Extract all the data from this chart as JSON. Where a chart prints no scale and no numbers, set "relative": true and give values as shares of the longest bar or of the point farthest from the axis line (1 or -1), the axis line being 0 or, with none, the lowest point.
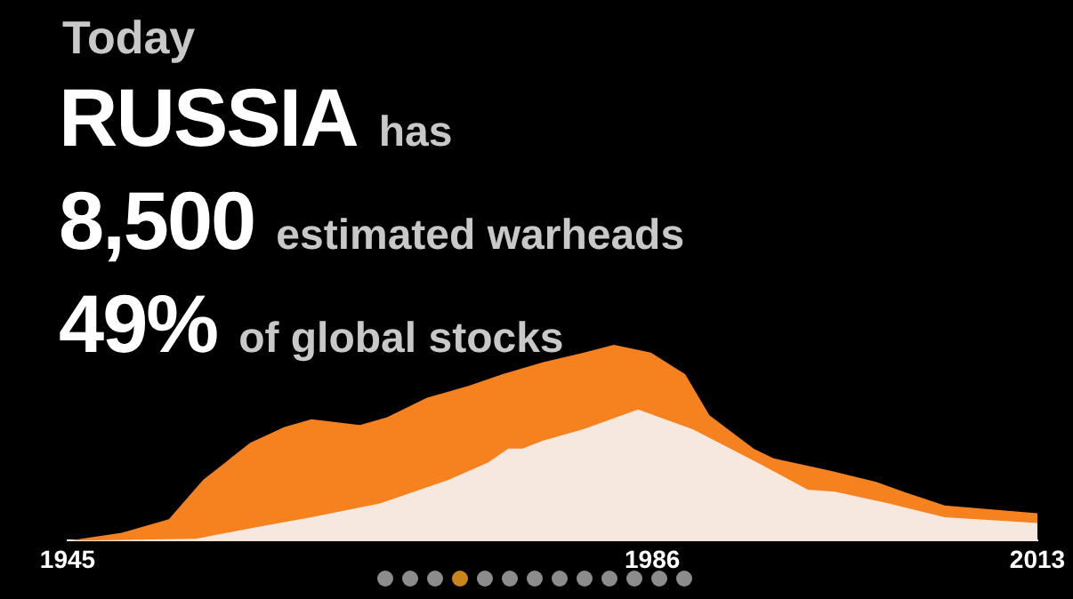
{
  "chart_data": {
    "type": "area",
    "title": "Today",
    "annotations": [
      "RUSSIA has",
      "8,500 estimated warheads",
      "49% of global stocks"
    ],
    "relative": true,
    "tick_labels": "x",
    "xlim": [
      1945,
      2013
    ],
    "xticks": [
      1945,
      1986,
      2013
    ],
    "series": [
      {
        "color": "#f5821f",
        "x": [
          1945,
          1948.8,
          1952.1,
          1954.5,
          1957.8,
          1960.2,
          1962.1,
          1965.5,
          1967.4,
          1970.2,
          1973.1,
          1975.5,
          1978.3,
          1981.2,
          1983.3,
          1985.9,
          1988.3,
          1990,
          1993.1,
          1994.5,
          1998.3,
          2001.7,
          2003.6,
          2006.5,
          2009.8,
          2013
        ],
        "values": [
          0,
          0.04,
          0.11,
          0.31,
          0.5,
          0.58,
          0.62,
          0.59,
          0.63,
          0.73,
          0.79,
          0.85,
          0.91,
          0.96,
          1,
          0.96,
          0.85,
          0.64,
          0.47,
          0.42,
          0.36,
          0.3,
          0.25,
          0.18,
          0.16,
          0.14
        ]
      },
      {
        "color": "#f6e8df",
        "x": [
          1945,
          1954,
          1958.3,
          1962.1,
          1966.9,
          1971.7,
          1974.5,
          1975.9,
          1976.9,
          1978.3,
          1981.2,
          1985,
          1988.8,
          1991.2,
          1993.6,
          1996.9,
          1998.8,
          2002.6,
          2006.5,
          2013
        ],
        "values": [
          0,
          0.01,
          0.07,
          0.12,
          0.19,
          0.31,
          0.4,
          0.47,
          0.47,
          0.51,
          0.57,
          0.67,
          0.57,
          0.48,
          0.39,
          0.26,
          0.25,
          0.19,
          0.12,
          0.09
        ]
      }
    ]
  }
}
